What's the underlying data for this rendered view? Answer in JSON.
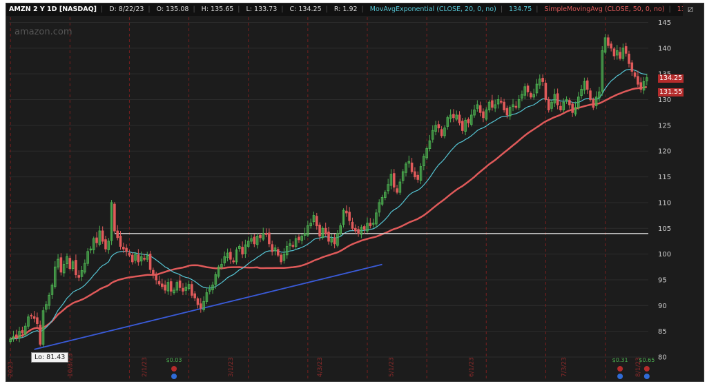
{
  "header": {
    "symbol": "AMZN 2 Y 1D [NASDAQ]",
    "date": "D: 8/22/23",
    "open": "O: 135.08",
    "high": "H: 135.65",
    "low": "L: 133.73",
    "close": "C: 134.25",
    "range": "R: 1.92",
    "ema_label": "MovAvgExponential (CLOSE, 20, 0, no)",
    "ema_value": "134.75",
    "sma_label": "SimpleMovingAvg (CLOSE, 50, 0, no)",
    "sma_value": "131.55"
  },
  "watermark": "amazon.com",
  "lo_label": "Lo: 81.43",
  "price_badges": {
    "last": "134.25",
    "sma": "131.55"
  },
  "colors": {
    "background": "#1c1c1c",
    "up_candle": "#4caf50",
    "down_candle": "#e05a5a",
    "ema": "#56c7d6",
    "sma": "#e05a5a",
    "trendline": "#3a5bd9",
    "resistance": "#d9d9d9",
    "grid": "#2c2c2c",
    "period_marker": "#7a1f1f"
  },
  "chart_data": {
    "type": "candlestick",
    "y_ticks": [
      "145",
      "140",
      "135",
      "130",
      "125",
      "120",
      "115",
      "110",
      "105",
      "100",
      "95",
      "90",
      "85",
      "80"
    ],
    "ylim": [
      78,
      146
    ],
    "x_tick_labels": [
      "2023",
      "10/3/23",
      "2/1/23",
      "3/1/23",
      "4/3/23",
      "5/1/23",
      "6/1/23",
      "7/3/23",
      "8/1/23"
    ],
    "dividend_labels": [
      "$0.03",
      "$0.31",
      "$0.65"
    ],
    "horizontal_line": 104,
    "trendline": {
      "start": {
        "bar": 8,
        "price": 81.5
      },
      "end": {
        "bar": 125,
        "price": 98.0
      }
    },
    "closes": [
      83.5,
      84.0,
      83.8,
      85.0,
      84.7,
      86.0,
      87.8,
      88.0,
      87.5,
      86.5,
      82.5,
      89.0,
      90.2,
      92.0,
      94.0,
      97.5,
      99.0,
      96.5,
      98.0,
      99.5,
      97.2,
      98.5,
      96.0,
      95.5,
      96.8,
      98.2,
      100.5,
      101.0,
      103.0,
      102.2,
      104.5,
      102.5,
      101.0,
      102.5,
      110.0,
      104.5,
      103.2,
      101.5,
      101.0,
      100.5,
      99.8,
      98.5,
      100.0,
      98.5,
      99.5,
      99.0,
      99.7,
      97.0,
      96.0,
      95.0,
      94.2,
      93.7,
      93.0,
      94.5,
      92.8,
      93.0,
      94.5,
      93.5,
      92.8,
      93.6,
      94.1,
      92.0,
      91.5,
      90.2,
      89.5,
      90.8,
      92.5,
      93.2,
      94.0,
      96.0,
      97.5,
      98.0,
      99.5,
      100.2,
      99.0,
      98.5,
      100.8,
      101.5,
      100.0,
      101.8,
      102.5,
      103.0,
      102.0,
      103.5,
      103.2,
      104.0,
      103.8,
      102.0,
      100.5,
      101.2,
      99.8,
      98.5,
      100.0,
      101.5,
      102.0,
      101.5,
      103.0,
      102.8,
      103.5,
      104.0,
      105.5,
      106.0,
      107.5,
      105.5,
      103.5,
      105.0,
      104.0,
      102.5,
      103.0,
      102.0,
      104.0,
      105.5,
      108.5,
      108.0,
      106.5,
      105.0,
      104.5,
      104.0,
      105.2,
      104.8,
      106.0,
      105.5,
      106.0,
      108.0,
      110.0,
      111.0,
      112.0,
      113.5,
      115.5,
      113.0,
      112.0,
      114.0,
      116.0,
      117.5,
      118.0,
      116.0,
      115.0,
      114.5,
      117.0,
      119.0,
      120.5,
      122.0,
      124.0,
      125.0,
      124.5,
      123.0,
      124.5,
      126.5,
      127.0,
      126.5,
      127.0,
      125.5,
      124.0,
      126.0,
      125.5,
      127.0,
      128.0,
      129.0,
      127.5,
      126.5,
      128.0,
      129.5,
      128.5,
      129.0,
      130.0,
      129.5,
      128.0,
      127.0,
      128.5,
      129.0,
      128.5,
      130.0,
      131.0,
      132.5,
      131.5,
      130.5,
      131.0,
      133.0,
      134.0,
      133.5,
      130.0,
      128.0,
      129.5,
      131.0,
      129.0,
      128.0,
      129.5,
      130.0,
      129.0,
      127.5,
      128.5,
      130.5,
      132.0,
      133.5,
      132.0,
      130.0,
      128.5,
      130.5,
      131.5,
      139.5,
      142.0,
      140.5,
      140.0,
      138.5,
      139.5,
      138.0,
      140.0,
      139.0,
      137.0,
      135.5,
      134.5,
      133.0,
      132.0,
      133.5,
      134.25
    ],
    "series": [
      {
        "name": "MovAvgExponential (CLOSE, 20, 0, no)"
      },
      {
        "name": "SimpleMovingAvg (CLOSE, 50, 0, no)"
      }
    ]
  }
}
